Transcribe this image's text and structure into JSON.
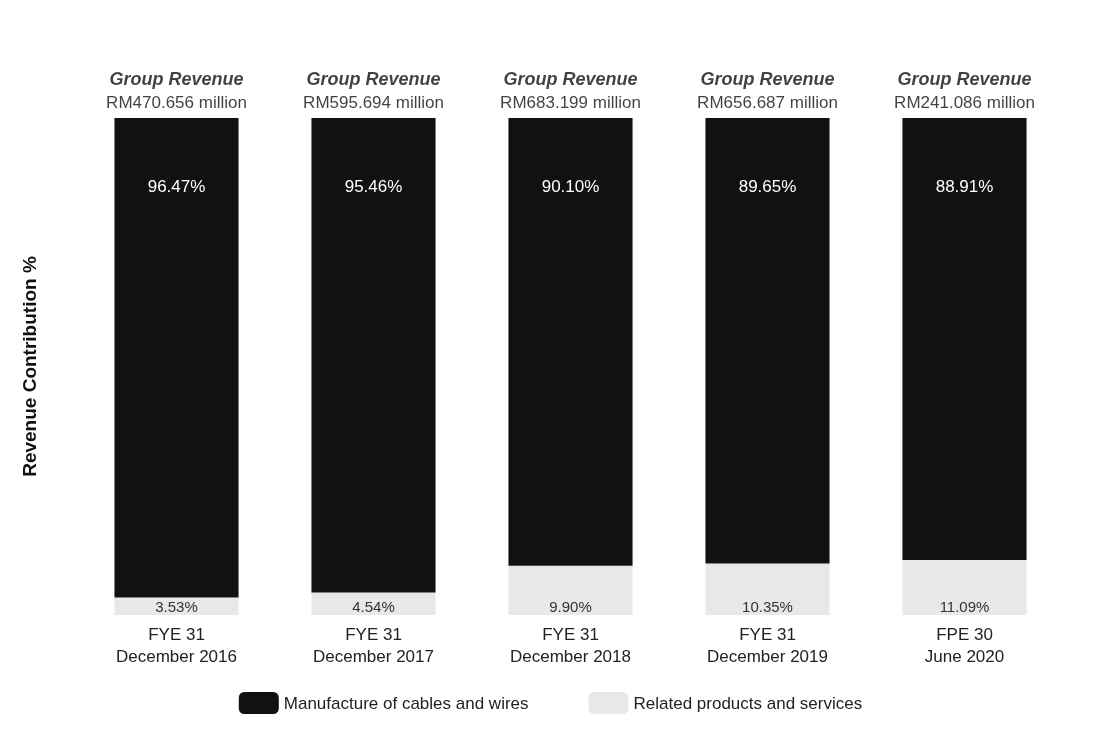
{
  "chart_data": {
    "type": "bar",
    "stacked": true,
    "ylabel": "Revenue Contribution %",
    "tick_labels": "x",
    "categories": [
      "FYE 31\nDecember 2016",
      "FYE 31\nDecember 2017",
      "FYE 31\nDecember 2018",
      "FYE 31\nDecember 2019",
      "FPE 30\nJune 2020"
    ],
    "series": [
      {
        "name": "Related products and services",
        "color": "#e8e8e8",
        "values": [
          3.53,
          4.54,
          9.9,
          10.35,
          11.09
        ],
        "value_labels": [
          "3.53%",
          "4.54%",
          "9.90%",
          "10.35%",
          "11.09%"
        ]
      },
      {
        "name": "Manufacture of cables and wires",
        "color": "#111111",
        "values": [
          96.47,
          95.46,
          90.1,
          89.65,
          88.91
        ],
        "value_labels": [
          "96.47%",
          "95.46%",
          "90.10%",
          "89.65%",
          "88.91%"
        ]
      }
    ],
    "totals": [
      "Group Revenue\nRM470.656 million",
      "Group Revenue\nRM595.694 million",
      "Group Revenue\nRM683.199 million",
      "Group Revenue\nRM656.687 million",
      "Group Revenue\nRM241.086 million"
    ],
    "legend": "bottom"
  }
}
